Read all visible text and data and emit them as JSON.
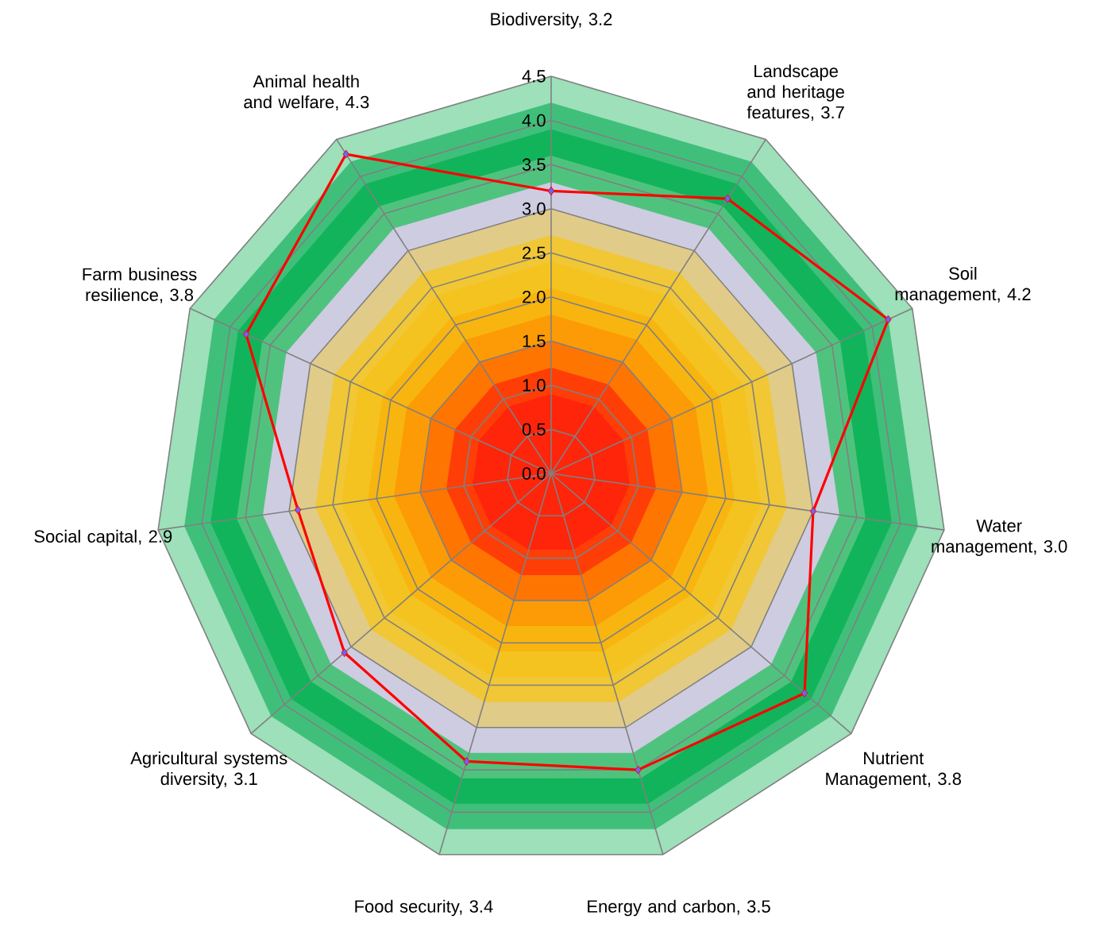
{
  "chart_data": {
    "type": "radar",
    "categories": [
      "Biodiversity, 3.2",
      "Landscape and heritage features, 3.7",
      "Soil management, 4.2",
      "Water management, 3.0",
      "Nutrient Management, 3.8",
      "Energy and carbon, 3.5",
      "Food security, 3.4",
      "Agricultural systems diversity, 3.1",
      "Social capital, 2.9",
      "Farm business resilience, 3.8",
      "Animal health and welfare, 4.3"
    ],
    "series": [
      {
        "color": "#ff0000",
        "values": [
          3.2,
          3.7,
          4.2,
          3.0,
          3.8,
          3.5,
          3.4,
          3.1,
          2.9,
          3.8,
          4.3
        ]
      }
    ],
    "ylim": [
      0,
      4.5
    ],
    "yticks": [
      {
        "value": 0,
        "label": "0.0"
      },
      {
        "value": 0.5,
        "label": "0.5"
      },
      {
        "value": 1,
        "label": "1.0"
      },
      {
        "value": 1.5,
        "label": "1.5"
      },
      {
        "value": 2,
        "label": "2.0"
      },
      {
        "value": 2.5,
        "label": "2.5"
      },
      {
        "value": 3,
        "label": "3.0"
      },
      {
        "value": 3.5,
        "label": "3.5"
      },
      {
        "value": 4,
        "label": "4.0"
      },
      {
        "value": 4.5,
        "label": "4.5"
      }
    ],
    "grid": true,
    "marker": "diamond",
    "line_style": "solid"
  }
}
